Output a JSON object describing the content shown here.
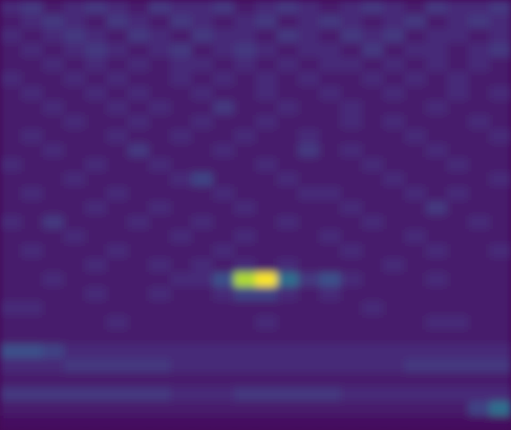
{
  "chart_data": {
    "type": "heatmap",
    "tick_labels": false,
    "zlim": [
      0,
      25
    ],
    "cells": [
      [
        3,
        4,
        2,
        3,
        4,
        3,
        2,
        4,
        3,
        3,
        4,
        2,
        3,
        4,
        3,
        2,
        3,
        4,
        3,
        2,
        4,
        3,
        3,
        4
      ],
      [
        2,
        3,
        4,
        3,
        2,
        4,
        3,
        2,
        4,
        3,
        2,
        3,
        4,
        2,
        3,
        4,
        3,
        2,
        3,
        4,
        2,
        3,
        4,
        3
      ],
      [
        3,
        2,
        3,
        4,
        3,
        2,
        4,
        3,
        2,
        4,
        3,
        3,
        2,
        4,
        3,
        2,
        4,
        3,
        4,
        2,
        3,
        3,
        2,
        3
      ],
      [
        2,
        3,
        2,
        3,
        4,
        3,
        2,
        3,
        4,
        2,
        3,
        4,
        3,
        2,
        3,
        3,
        2,
        4,
        2,
        3,
        3,
        2,
        3,
        4
      ],
      [
        2,
        2,
        3,
        2,
        3,
        2,
        3,
        2,
        3,
        3,
        2,
        3,
        2,
        3,
        2,
        3,
        3,
        2,
        3,
        2,
        3,
        2,
        3,
        2
      ],
      [
        3,
        2,
        2,
        3,
        2,
        3,
        2,
        2,
        3,
        2,
        3,
        2,
        3,
        2,
        3,
        2,
        2,
        3,
        2,
        3,
        2,
        3,
        2,
        2
      ],
      [
        2,
        3,
        2,
        2,
        3,
        2,
        3,
        2,
        2,
        3,
        2,
        2,
        3,
        2,
        2,
        3,
        2,
        2,
        3,
        2,
        2,
        3,
        2,
        3
      ],
      [
        2,
        2,
        3,
        2,
        2,
        3,
        2,
        3,
        2,
        2,
        4,
        2,
        2,
        3,
        2,
        2,
        3,
        2,
        2,
        2,
        3,
        2,
        2,
        2
      ],
      [
        2,
        2,
        2,
        3,
        2,
        2,
        3,
        2,
        2,
        3,
        2,
        2,
        3,
        2,
        2,
        2,
        3,
        2,
        3,
        2,
        2,
        2,
        3,
        2
      ],
      [
        2,
        3,
        2,
        2,
        2,
        3,
        2,
        2,
        3,
        2,
        2,
        3,
        2,
        2,
        3,
        2,
        2,
        2,
        2,
        3,
        2,
        2,
        2,
        3
      ],
      [
        2,
        2,
        3,
        2,
        2,
        2,
        4,
        2,
        2,
        2,
        3,
        2,
        2,
        2,
        4,
        2,
        3,
        2,
        2,
        2,
        3,
        2,
        2,
        2
      ],
      [
        3,
        2,
        2,
        2,
        3,
        2,
        2,
        3,
        2,
        2,
        2,
        2,
        3,
        2,
        2,
        2,
        2,
        3,
        2,
        2,
        2,
        3,
        2,
        2
      ],
      [
        2,
        2,
        2,
        3,
        2,
        2,
        2,
        2,
        3,
        5,
        2,
        2,
        2,
        3,
        2,
        2,
        2,
        2,
        3,
        2,
        2,
        2,
        2,
        3
      ],
      [
        2,
        3,
        2,
        2,
        2,
        3,
        2,
        2,
        2,
        2,
        3,
        2,
        2,
        2,
        3,
        3,
        2,
        2,
        2,
        3,
        2,
        3,
        2,
        2
      ],
      [
        2,
        2,
        2,
        2,
        3,
        2,
        2,
        3,
        2,
        2,
        2,
        3,
        2,
        2,
        2,
        2,
        3,
        2,
        2,
        2,
        4,
        2,
        2,
        2
      ],
      [
        3,
        2,
        4,
        2,
        2,
        2,
        3,
        2,
        2,
        3,
        2,
        2,
        2,
        3,
        2,
        2,
        2,
        3,
        2,
        2,
        2,
        2,
        3,
        2
      ],
      [
        2,
        2,
        2,
        3,
        2,
        2,
        2,
        2,
        3,
        2,
        2,
        3,
        2,
        2,
        2,
        3,
        2,
        2,
        2,
        3,
        2,
        2,
        2,
        2
      ],
      [
        2,
        3,
        2,
        2,
        2,
        3,
        2,
        2,
        2,
        2,
        3,
        2,
        2,
        2,
        2,
        2,
        3,
        2,
        2,
        2,
        3,
        2,
        2,
        3
      ],
      [
        2,
        2,
        2,
        2,
        3,
        2,
        2,
        3,
        2,
        3,
        2,
        3,
        2,
        3,
        2,
        2,
        2,
        2,
        3,
        2,
        2,
        2,
        2,
        2
      ],
      [
        2,
        2,
        3,
        2,
        2,
        2,
        2,
        2,
        3,
        3,
        6,
        22,
        25,
        9,
        4,
        6,
        3,
        2,
        2,
        2,
        3,
        2,
        2,
        2
      ],
      [
        2,
        2,
        2,
        2,
        3,
        2,
        2,
        3,
        2,
        2,
        3,
        5,
        5,
        3,
        2,
        3,
        2,
        2,
        2,
        2,
        2,
        2,
        2,
        2
      ],
      [
        3,
        3,
        2,
        2,
        2,
        2,
        2,
        2,
        2,
        2,
        2,
        2,
        2,
        2,
        2,
        2,
        2,
        3,
        2,
        2,
        2,
        2,
        2,
        2
      ],
      [
        2,
        2,
        2,
        2,
        2,
        3,
        2,
        2,
        2,
        2,
        2,
        2,
        3,
        2,
        2,
        2,
        2,
        2,
        2,
        2,
        3,
        3,
        2,
        2
      ],
      [
        2,
        2,
        2,
        2,
        2,
        2,
        2,
        2,
        2,
        2,
        2,
        2,
        2,
        2,
        2,
        2,
        2,
        2,
        2,
        2,
        2,
        2,
        2,
        2
      ],
      [
        6,
        6,
        5,
        3,
        3,
        3,
        3,
        3,
        3,
        3,
        3,
        3,
        3,
        3,
        3,
        3,
        3,
        3,
        3,
        3,
        3,
        3,
        3,
        3
      ],
      [
        3,
        3,
        3,
        4,
        4,
        4,
        4,
        4,
        3,
        3,
        3,
        3,
        3,
        3,
        3,
        3,
        3,
        3,
        3,
        4,
        4,
        4,
        4,
        4
      ],
      [
        2,
        2,
        2,
        2,
        2,
        2,
        2,
        2,
        2,
        2,
        2,
        2,
        2,
        2,
        2,
        2,
        2,
        2,
        2,
        2,
        2,
        2,
        2,
        2
      ],
      [
        4,
        4,
        4,
        4,
        4,
        4,
        4,
        4,
        3,
        3,
        3,
        4,
        4,
        4,
        4,
        4,
        3,
        3,
        3,
        3,
        3,
        3,
        3,
        3
      ],
      [
        2,
        2,
        2,
        2,
        2,
        2,
        2,
        2,
        2,
        2,
        2,
        2,
        2,
        2,
        2,
        2,
        2,
        2,
        2,
        2,
        2,
        2,
        5,
        9
      ],
      [
        1,
        1,
        1,
        1,
        1,
        1,
        1,
        1,
        1,
        1,
        1,
        1,
        1,
        1,
        1,
        1,
        1,
        1,
        1,
        1,
        1,
        1,
        1,
        1
      ]
    ]
  }
}
